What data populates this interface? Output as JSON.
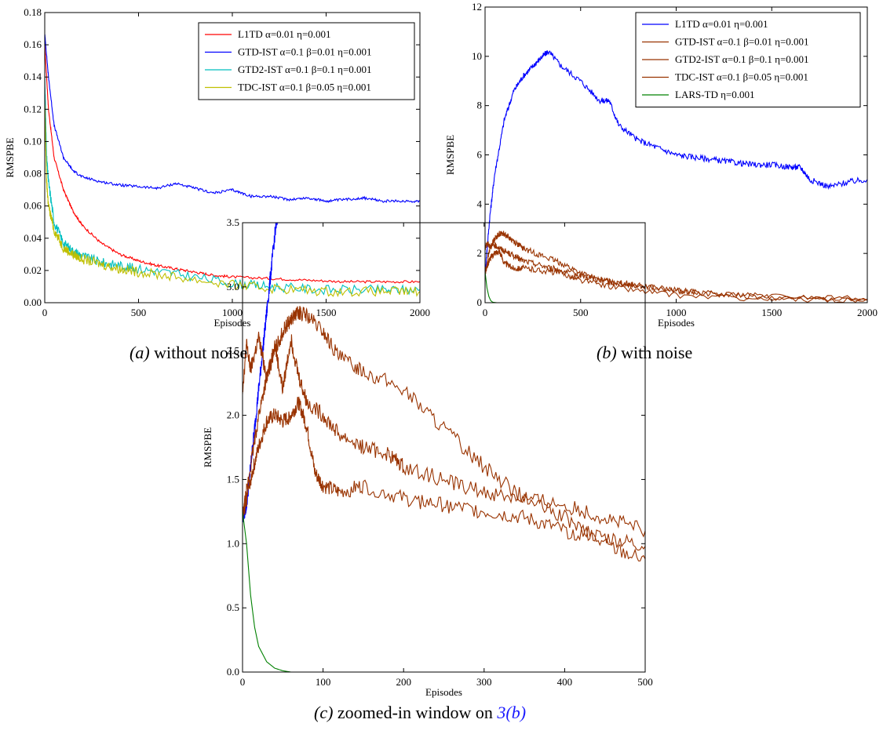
{
  "figure": {
    "captions": [
      {
        "letter": "(a)",
        "text": " without noise"
      },
      {
        "letter": "(b)",
        "text": " with noise"
      },
      {
        "letter": "(c)",
        "text": " zoomed-in window on ",
        "link": "3(b)"
      }
    ]
  },
  "colors": {
    "L1TD": "#ff0000",
    "GTD": "#0000ff",
    "GTD2": "#00bfbf",
    "TDC": "#bfbf00",
    "blue": "#0000ff",
    "brown": "#993300",
    "green": "#008000",
    "link": "#1a1aff"
  },
  "chart_data": [
    {
      "type": "line",
      "xlabel": "Episodes",
      "ylabel": "RMSPBE",
      "xlim": [
        0,
        2000
      ],
      "ylim": [
        0,
        0.18
      ],
      "xticks": [
        "0",
        "500",
        "1000",
        "1500",
        "2000"
      ],
      "yticks": [
        "0.00",
        "0.02",
        "0.04",
        "0.06",
        "0.08",
        "0.10",
        "0.12",
        "0.14",
        "0.16",
        "0.18"
      ],
      "legend_position": "top-right",
      "series": [
        {
          "name": "L1TD α=0.01 η=0.001",
          "color_key": "L1TD",
          "x": [
            0,
            20,
            50,
            100,
            150,
            200,
            300,
            400,
            500,
            600,
            700,
            800,
            900,
            1000,
            1200,
            1400,
            1600,
            1800,
            2000
          ],
          "y": [
            0.16,
            0.12,
            0.09,
            0.07,
            0.057,
            0.048,
            0.037,
            0.03,
            0.026,
            0.023,
            0.021,
            0.019,
            0.017,
            0.016,
            0.015,
            0.014,
            0.013,
            0.013,
            0.013
          ]
        },
        {
          "name": "GTD-IST α=0.1 β=0.01 η=0.001",
          "color_key": "GTD",
          "x": [
            0,
            20,
            50,
            100,
            150,
            200,
            300,
            400,
            500,
            600,
            700,
            800,
            900,
            1000,
            1100,
            1200,
            1300,
            1400,
            1500,
            1600,
            1700,
            1800,
            1900,
            2000
          ],
          "y": [
            0.167,
            0.14,
            0.11,
            0.09,
            0.082,
            0.078,
            0.075,
            0.073,
            0.072,
            0.071,
            0.074,
            0.071,
            0.068,
            0.07,
            0.066,
            0.066,
            0.064,
            0.065,
            0.063,
            0.064,
            0.065,
            0.063,
            0.063,
            0.063
          ]
        },
        {
          "name": "GTD2-IST α=0.1 β=0.1 η=0.001",
          "color_key": "GTD2",
          "x": [
            0,
            10,
            20,
            50,
            100,
            150,
            200,
            300,
            400,
            500,
            700,
            1000,
            1200,
            1500,
            1800,
            2000
          ],
          "y": [
            0.14,
            0.09,
            0.075,
            0.05,
            0.037,
            0.032,
            0.029,
            0.025,
            0.023,
            0.021,
            0.018,
            0.012,
            0.01,
            0.008,
            0.008,
            0.008
          ]
        },
        {
          "name": "TDC-IST α=0.1 β=0.05 η=0.001",
          "color_key": "TDC",
          "x": [
            0,
            10,
            20,
            50,
            100,
            150,
            200,
            300,
            400,
            500,
            700,
            1000,
            1200,
            1500,
            1800,
            2000
          ],
          "y": [
            0.125,
            0.075,
            0.06,
            0.045,
            0.034,
            0.03,
            0.027,
            0.024,
            0.021,
            0.019,
            0.016,
            0.011,
            0.009,
            0.007,
            0.007,
            0.007
          ]
        }
      ]
    },
    {
      "type": "line",
      "xlabel": "Episodes",
      "ylabel": "RMSPBE",
      "xlim": [
        0,
        2000
      ],
      "ylim": [
        0,
        12
      ],
      "xticks": [
        "0",
        "500",
        "1000",
        "1500",
        "2000"
      ],
      "yticks": [
        "0",
        "2",
        "4",
        "6",
        "8",
        "10",
        "12"
      ],
      "legend_position": "top-right",
      "series": [
        {
          "name": "L1TD α=0.01 η=0.001",
          "color_key": "blue",
          "x": [
            0,
            25,
            50,
            100,
            150,
            200,
            250,
            300,
            330,
            400,
            500,
            600,
            650,
            700,
            800,
            900,
            1000,
            1100,
            1200,
            1300,
            1400,
            1500,
            1600,
            1650,
            1700,
            1800,
            1900,
            2000
          ],
          "y": [
            1.2,
            3.5,
            5.2,
            7.4,
            8.6,
            9.2,
            9.6,
            10.0,
            10.2,
            9.6,
            9.0,
            8.2,
            8.2,
            7.2,
            6.6,
            6.3,
            6.0,
            5.9,
            5.8,
            5.7,
            5.6,
            5.6,
            5.5,
            5.5,
            5.0,
            4.7,
            4.9,
            5.0
          ]
        },
        {
          "name": "GTD-IST α=0.1 β=0.01 η=0.001",
          "color_key": "brown",
          "x": [
            0,
            25,
            50,
            75,
            100,
            150,
            200,
            300,
            400,
            500,
            600,
            700,
            800,
            1000,
            1200,
            1500,
            2000
          ],
          "y": [
            1.2,
            2.2,
            2.6,
            2.8,
            2.8,
            2.5,
            2.2,
            1.9,
            1.6,
            1.2,
            0.9,
            0.8,
            0.7,
            0.5,
            0.35,
            0.25,
            0.15
          ]
        },
        {
          "name": "GTD2-IST α=0.1 β=0.1 η=0.001",
          "color_key": "brown",
          "x": [
            0,
            25,
            50,
            75,
            100,
            150,
            200,
            300,
            400,
            500,
            700,
            1000,
            1500,
            2000
          ],
          "y": [
            1.2,
            1.8,
            2.0,
            2.1,
            1.6,
            1.4,
            1.4,
            1.3,
            1.2,
            0.9,
            0.6,
            0.3,
            0.15,
            0.1
          ]
        },
        {
          "name": "TDC-IST α=0.1 β=0.05 η=0.001",
          "color_key": "brown",
          "x": [
            0,
            10,
            30,
            60,
            100,
            150,
            200,
            300,
            400,
            500,
            600,
            700,
            800,
            1000,
            1200,
            1500,
            2000
          ],
          "y": [
            2.2,
            2.4,
            2.3,
            2.3,
            2.1,
            1.9,
            1.7,
            1.5,
            1.3,
            1.1,
            0.95,
            0.8,
            0.7,
            0.5,
            0.35,
            0.2,
            0.1
          ]
        },
        {
          "name": "LARS-TD η=0.001",
          "color_key": "green",
          "x": [
            0,
            10,
            20,
            30,
            40,
            60,
            100,
            2000
          ],
          "y": [
            1.25,
            0.6,
            0.25,
            0.08,
            0.02,
            0.0,
            0.0,
            0.0
          ]
        }
      ]
    },
    {
      "type": "line",
      "xlabel": "Episodes",
      "ylabel": "RMSPBE",
      "xlim": [
        0,
        500
      ],
      "ylim": [
        0,
        3.5
      ],
      "xticks": [
        "0",
        "100",
        "200",
        "300",
        "400",
        "500"
      ],
      "yticks": [
        "0.0",
        "0.5",
        "1.0",
        "1.5",
        "2.0",
        "2.5",
        "3.0",
        "3.5"
      ],
      "series": [
        {
          "color_key": "blue",
          "x": [
            0,
            5,
            10,
            15,
            20,
            25,
            30,
            35,
            40,
            45
          ],
          "y": [
            1.2,
            1.3,
            1.6,
            1.9,
            2.2,
            2.5,
            2.8,
            3.1,
            3.4,
            3.6
          ]
        },
        {
          "color_key": "brown",
          "x": [
            0,
            10,
            20,
            30,
            40,
            50,
            60,
            70,
            80,
            100,
            120,
            150,
            200,
            250,
            300,
            350,
            400,
            450,
            500
          ],
          "y": [
            1.2,
            1.6,
            2.0,
            2.3,
            2.5,
            2.65,
            2.75,
            2.8,
            2.78,
            2.65,
            2.45,
            2.35,
            2.2,
            1.9,
            1.6,
            1.35,
            1.2,
            1.0,
            0.88
          ]
        },
        {
          "color_key": "brown",
          "x": [
            0,
            10,
            20,
            30,
            40,
            50,
            60,
            70,
            80,
            90,
            100,
            120,
            150,
            200,
            250,
            300,
            350,
            400,
            450,
            500
          ],
          "y": [
            1.2,
            1.5,
            1.75,
            1.95,
            2.0,
            1.95,
            2.0,
            2.1,
            1.9,
            1.55,
            1.45,
            1.4,
            1.45,
            1.35,
            1.3,
            1.25,
            1.2,
            1.1,
            1.05,
            0.98
          ]
        },
        {
          "color_key": "brown",
          "x": [
            0,
            5,
            10,
            20,
            30,
            40,
            50,
            60,
            70,
            80,
            100,
            120,
            150,
            180,
            200,
            250,
            300,
            350,
            400,
            450,
            500
          ],
          "y": [
            2.2,
            2.55,
            2.35,
            2.6,
            2.3,
            2.55,
            2.2,
            2.6,
            2.3,
            2.1,
            2.0,
            1.85,
            1.75,
            1.7,
            1.6,
            1.5,
            1.4,
            1.35,
            1.3,
            1.2,
            1.1
          ]
        },
        {
          "color_key": "green",
          "x": [
            0,
            5,
            10,
            15,
            20,
            30,
            40,
            50,
            60,
            80,
            500
          ],
          "y": [
            1.25,
            1.0,
            0.6,
            0.35,
            0.2,
            0.08,
            0.03,
            0.01,
            0.0,
            0.0,
            0.0
          ]
        }
      ]
    }
  ]
}
